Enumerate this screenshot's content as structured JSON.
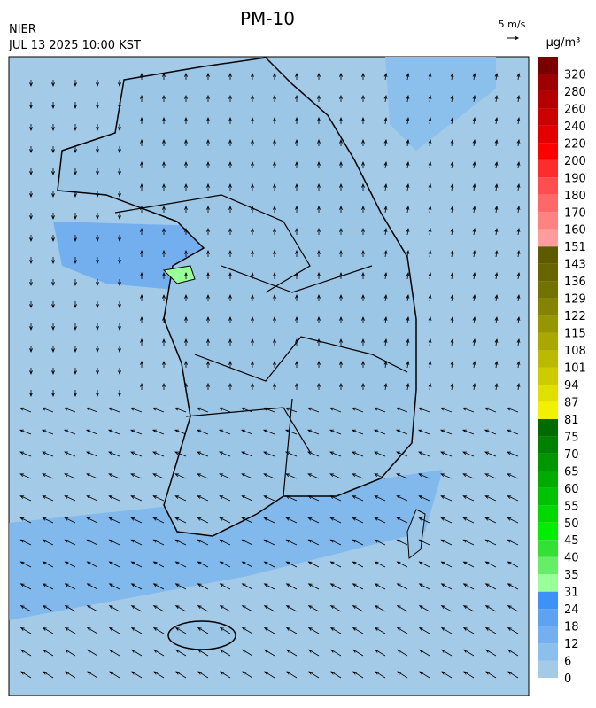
{
  "header": {
    "title": "PM-10",
    "source": "NIER",
    "datetime": "JUL 13 2025 10:00 KST",
    "wind_scale": "5 m/s"
  },
  "colorbar": {
    "unit": "µg/m³",
    "labels": [
      0,
      6,
      12,
      18,
      24,
      31,
      35,
      40,
      45,
      50,
      55,
      60,
      65,
      70,
      75,
      81,
      87,
      94,
      101,
      108,
      115,
      122,
      129,
      136,
      143,
      151,
      160,
      170,
      180,
      190,
      200,
      220,
      240,
      260,
      280,
      320
    ],
    "colors": [
      "#a3cbe8",
      "#8cc0ec",
      "#74b0ef",
      "#5ea2f2",
      "#3f92f5",
      "#99ff99",
      "#66ee66",
      "#33e033",
      "#00ee00",
      "#00d800",
      "#00c200",
      "#00ab00",
      "#009600",
      "#008000",
      "#006c00",
      "#f2f200",
      "#e0e000",
      "#cccc00",
      "#baba00",
      "#a8a800",
      "#969600",
      "#848400",
      "#727200",
      "#686400",
      "#5e5a00",
      "#ff9c9c",
      "#ff8282",
      "#ff6868",
      "#ff4e4e",
      "#ff2c2c",
      "#ff0000",
      "#e40000",
      "#cc0000",
      "#b40000",
      "#9c0000",
      "#7a0000"
    ]
  }
}
